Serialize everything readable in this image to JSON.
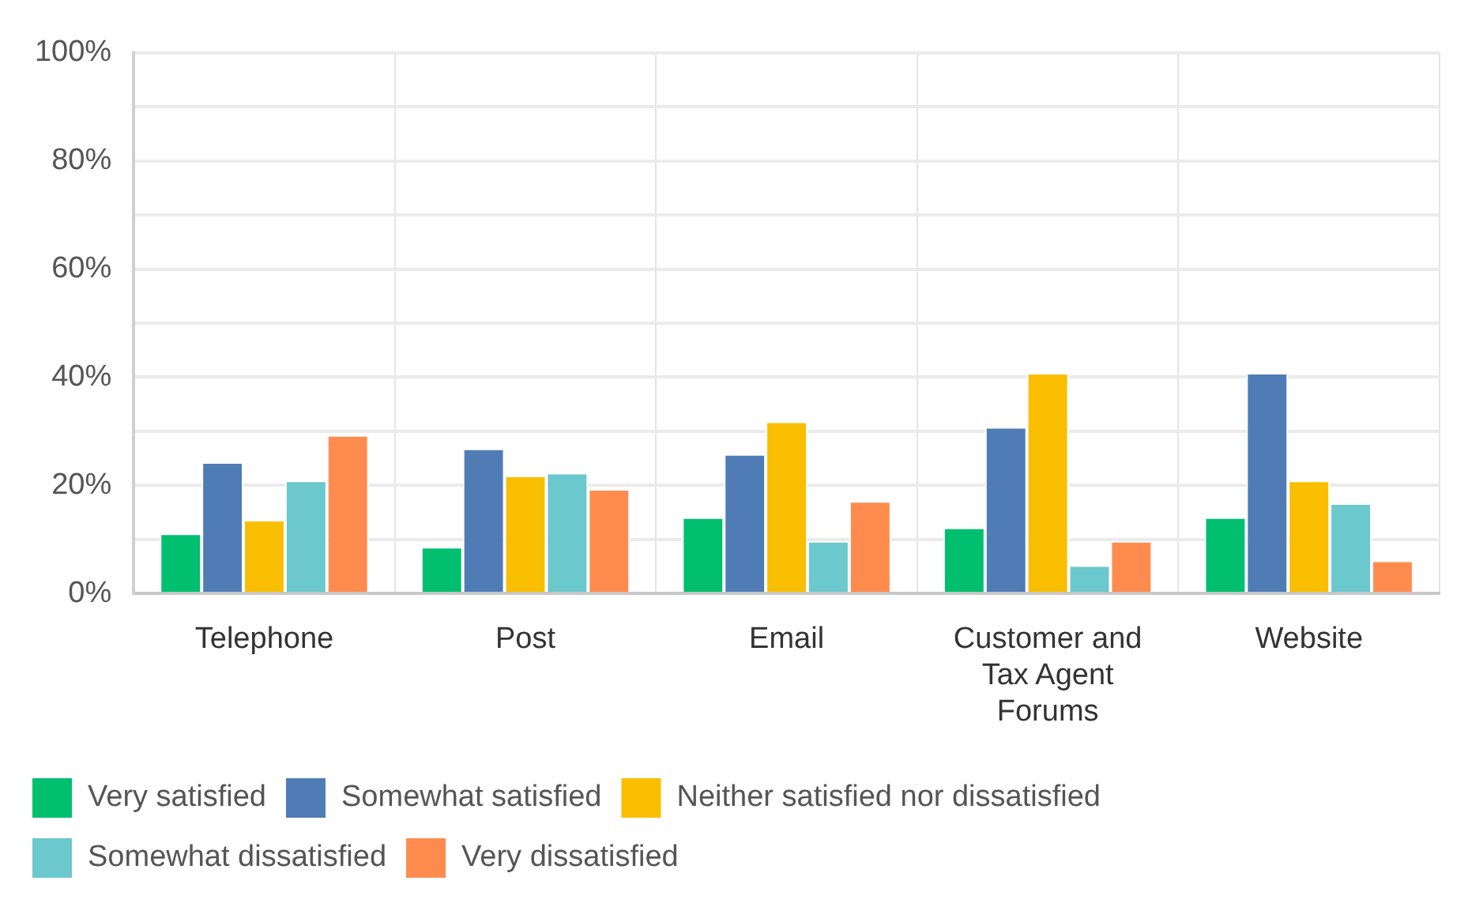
{
  "chart_data": {
    "type": "bar",
    "categories": [
      "Telephone",
      "Post",
      "Email",
      "Customer and Tax Agent Forums",
      "Website"
    ],
    "series": [
      {
        "name": "Very satisfied",
        "color": "#00bf6f",
        "values": [
          11.1,
          8.6,
          14.1,
          12.2,
          14.1
        ]
      },
      {
        "name": "Somewhat satisfied",
        "color": "#507cb6",
        "values": [
          24.3,
          26.8,
          25.8,
          30.8,
          40.8
        ]
      },
      {
        "name": "Neither satisfied nor dissatisfied",
        "color": "#f9be00",
        "values": [
          13.6,
          21.8,
          31.8,
          40.8,
          20.9
        ]
      },
      {
        "name": "Somewhat dissatisfied",
        "color": "#6bc8cd",
        "values": [
          20.9,
          22.3,
          9.7,
          5.2,
          16.7
        ]
      },
      {
        "name": "Very dissatisfied",
        "color": "#ff8b4f",
        "values": [
          29.3,
          19.3,
          17.1,
          9.7,
          6.1
        ]
      }
    ],
    "ylim": [
      0,
      100
    ],
    "yticks": [
      {
        "value": 0,
        "label": "0%"
      },
      {
        "value": 10,
        "label": null
      },
      {
        "value": 20,
        "label": "20%"
      },
      {
        "value": 30,
        "label": null
      },
      {
        "value": 40,
        "label": "40%"
      },
      {
        "value": 50,
        "label": null
      },
      {
        "value": 60,
        "label": "60%"
      },
      {
        "value": 70,
        "label": null
      },
      {
        "value": 80,
        "label": "80%"
      },
      {
        "value": 90,
        "label": null
      },
      {
        "value": 100,
        "label": "100%"
      }
    ],
    "grid": true,
    "legend": "bottom"
  }
}
